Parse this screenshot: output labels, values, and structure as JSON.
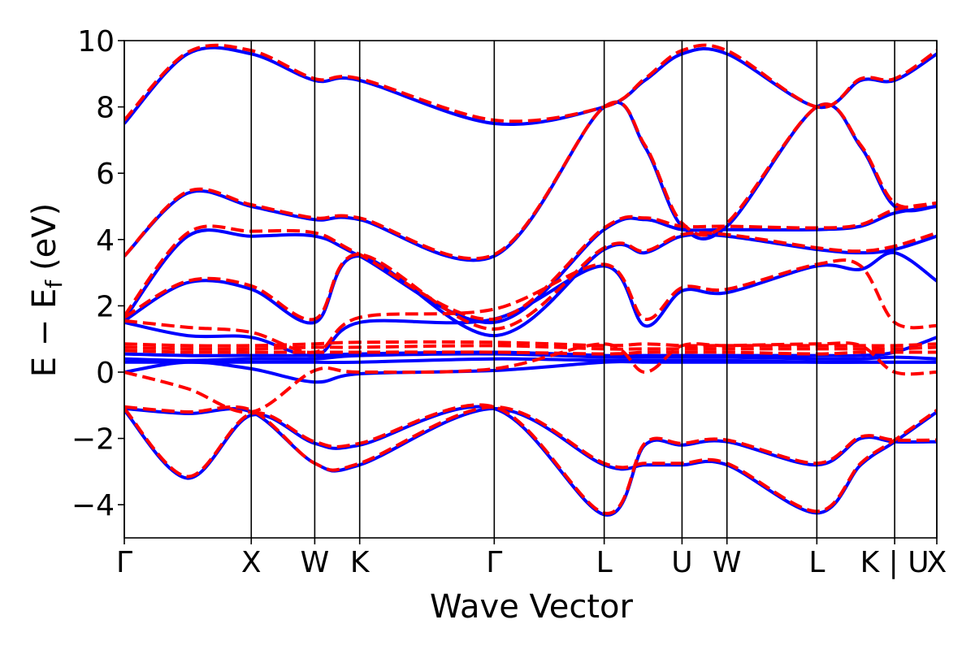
{
  "chart_data": {
    "type": "line",
    "xlabel": "Wave Vector",
    "ylabel": "E − E_f (eV)",
    "ylabel_main": "E − E",
    "ylabel_sub": "f",
    "ylabel_unit": "(eV)",
    "ylim": [
      -5,
      10
    ],
    "yticks": [
      -4,
      -2,
      0,
      2,
      4,
      6,
      8,
      10
    ],
    "ytick_labels": [
      "−4",
      "−2",
      "0",
      "2",
      "4",
      "6",
      "8",
      "10"
    ],
    "xlim": [
      0,
      6.4
    ],
    "kpoints": [
      {
        "label": "Γ",
        "x": 0.0
      },
      {
        "label": "X",
        "x": 1.0
      },
      {
        "label": "W",
        "x": 1.5
      },
      {
        "label": "K",
        "x": 1.854
      },
      {
        "label": "Γ",
        "x": 2.914
      },
      {
        "label": "L",
        "x": 3.78
      },
      {
        "label": "U",
        "x": 4.393
      },
      {
        "label": "W",
        "x": 4.747
      },
      {
        "label": "L",
        "x": 5.455
      },
      {
        "label": "K | U",
        "x": 6.068
      },
      {
        "label": "X",
        "x": 6.4
      }
    ],
    "colors": {
      "series_a": "#0000ff",
      "series_b": "#ff0000"
    },
    "series": [
      {
        "style": "solid",
        "color": "#0000ff",
        "bands": [
          [
            -1.1,
            -1.25,
            -1.2,
            -2.75,
            -2.8,
            -1.1,
            -2.8,
            -2.8,
            -2.8,
            -2.8,
            -4.25,
            -2.8,
            -2.1,
            -1.2
          ],
          [
            -1.15,
            -3.2,
            -1.3,
            -2.15,
            -2.2,
            -1.1,
            -4.3,
            -2.2,
            -2.2,
            -2.1,
            -2.8,
            -2.0,
            -2.1,
            -2.1
          ],
          [
            0.0,
            0.3,
            0.1,
            -0.3,
            -0.05,
            0.05,
            0.3,
            0.3,
            0.3,
            0.3,
            0.3,
            0.3,
            0.3,
            0.3
          ],
          [
            0.3,
            0.3,
            0.3,
            0.3,
            0.3,
            0.4,
            0.35,
            0.35,
            0.35,
            0.35,
            0.3,
            0.3,
            0.3,
            0.3
          ],
          [
            0.4,
            0.35,
            0.4,
            0.4,
            0.5,
            0.55,
            0.45,
            0.45,
            0.45,
            0.45,
            0.4,
            0.4,
            0.45,
            0.4
          ],
          [
            0.55,
            0.5,
            0.5,
            0.5,
            0.55,
            0.6,
            0.5,
            0.5,
            0.5,
            0.5,
            0.5,
            0.5,
            0.6,
            1.05
          ],
          [
            1.5,
            1.1,
            1.05,
            0.5,
            1.5,
            1.6,
            3.2,
            1.4,
            2.45,
            2.4,
            3.2,
            3.1,
            3.6,
            2.75
          ],
          [
            1.55,
            2.7,
            2.5,
            1.5,
            3.5,
            1.1,
            3.7,
            3.6,
            4.1,
            4.1,
            3.7,
            3.6,
            3.7,
            4.1
          ],
          [
            1.6,
            4.1,
            4.1,
            4.1,
            3.5,
            1.5,
            4.3,
            4.6,
            4.3,
            4.3,
            4.3,
            4.4,
            4.8,
            5.0
          ],
          [
            3.5,
            5.4,
            5.0,
            4.6,
            4.6,
            3.5,
            8.0,
            6.8,
            4.4,
            4.4,
            8.0,
            6.8,
            5.0,
            5.0
          ],
          [
            7.5,
            9.6,
            9.6,
            8.8,
            8.8,
            7.5,
            8.0,
            8.8,
            9.6,
            9.6,
            8.0,
            8.8,
            8.8,
            9.6
          ]
        ]
      },
      {
        "style": "dashed",
        "color": "#ff0000",
        "bands": [
          [
            -1.05,
            -1.2,
            -1.15,
            -2.75,
            -2.75,
            -1.05,
            -2.75,
            -2.75,
            -2.75,
            -2.75,
            -4.2,
            -2.75,
            -2.05,
            -1.15
          ],
          [
            -1.1,
            -3.15,
            -1.25,
            -2.1,
            -2.15,
            -1.05,
            -4.25,
            -2.15,
            -2.15,
            -2.05,
            -2.75,
            -1.95,
            -2.05,
            -2.05
          ],
          [
            0.0,
            -0.5,
            -1.2,
            0.05,
            0.0,
            0.1,
            0.85,
            0.0,
            0.8,
            0.8,
            0.85,
            0.8,
            0.0,
            0.0
          ],
          [
            0.65,
            0.6,
            0.6,
            0.6,
            0.6,
            0.6,
            0.55,
            0.6,
            0.6,
            0.6,
            0.55,
            0.6,
            0.6,
            0.6
          ],
          [
            0.75,
            0.7,
            0.7,
            0.75,
            0.75,
            0.8,
            0.7,
            0.7,
            0.7,
            0.7,
            0.7,
            0.7,
            0.7,
            0.75
          ],
          [
            0.85,
            0.8,
            0.8,
            0.85,
            0.9,
            0.9,
            0.8,
            0.85,
            0.8,
            0.8,
            0.8,
            0.8,
            0.8,
            0.85
          ],
          [
            1.55,
            1.35,
            1.2,
            0.6,
            1.65,
            1.9,
            3.25,
            1.6,
            2.55,
            2.5,
            3.25,
            3.2,
            1.5,
            1.4
          ],
          [
            1.65,
            2.75,
            2.6,
            1.6,
            3.55,
            1.3,
            3.75,
            3.65,
            4.15,
            4.15,
            3.75,
            3.65,
            3.8,
            4.2
          ],
          [
            1.7,
            4.2,
            4.25,
            4.2,
            3.55,
            1.6,
            4.35,
            4.65,
            4.4,
            4.4,
            4.35,
            4.45,
            4.9,
            5.1
          ],
          [
            3.5,
            5.45,
            5.05,
            4.65,
            4.65,
            3.55,
            8.0,
            6.85,
            4.5,
            4.5,
            8.0,
            6.85,
            5.1,
            5.1
          ],
          [
            7.6,
            9.65,
            9.7,
            8.85,
            8.85,
            7.6,
            8.0,
            8.85,
            9.7,
            9.7,
            8.0,
            8.85,
            8.85,
            9.7
          ]
        ]
      }
    ],
    "band_x": [
      0.0,
      0.5,
      1.0,
      1.5,
      1.854,
      2.914,
      3.78,
      4.1,
      4.393,
      4.747,
      5.455,
      5.8,
      6.068,
      6.4
    ]
  }
}
